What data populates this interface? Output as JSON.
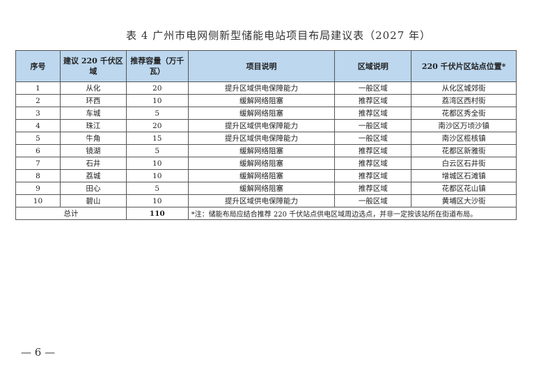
{
  "title": "表 4 广州市电网侧新型储能电站项目布局建议表（2027 年）",
  "headers": [
    "序号",
    "建议 220 千伏区域",
    "推荐容量（万千瓦）",
    "项目说明",
    "区域说明",
    "220 千伏片区站点位置*"
  ],
  "rows": [
    [
      "1",
      "从化",
      "20",
      "提升区域供电保障能力",
      "一般区域",
      "从化区城郊街"
    ],
    [
      "2",
      "环西",
      "10",
      "缓解网络阻塞",
      "推荐区域",
      "荔湾区西村街"
    ],
    [
      "3",
      "车城",
      "5",
      "缓解网络阻塞",
      "推荐区域",
      "花都区秀全街"
    ],
    [
      "4",
      "珠江",
      "20",
      "提升区域供电保障能力",
      "一般区域",
      "南沙区万顷沙镇"
    ],
    [
      "5",
      "牛角",
      "15",
      "提升区域供电保障能力",
      "一般区域",
      "南沙区榄核镇"
    ],
    [
      "6",
      "镜湖",
      "5",
      "缓解网络阻塞",
      "推荐区域",
      "花都区新雅街"
    ],
    [
      "7",
      "石井",
      "10",
      "缓解网络阻塞",
      "推荐区域",
      "白云区石井街"
    ],
    [
      "8",
      "荔城",
      "10",
      "缓解网络阻塞",
      "推荐区域",
      "增城区石滩镇"
    ],
    [
      "9",
      "田心",
      "5",
      "缓解网络阻塞",
      "推荐区域",
      "花都区花山镇"
    ],
    [
      "10",
      "碧山",
      "10",
      "提升区域供电保障能力",
      "一般区域",
      "黄埔区大沙街"
    ]
  ],
  "total": {
    "label": "总计",
    "value": "110",
    "note": "*注：储能布局应结合推荐 220 千伏站点供电区域周边选点，并非一定按该站所在街道布局。"
  },
  "page_number": "— 6 —",
  "colors": {
    "header_bg": "#bcd7ee"
  }
}
